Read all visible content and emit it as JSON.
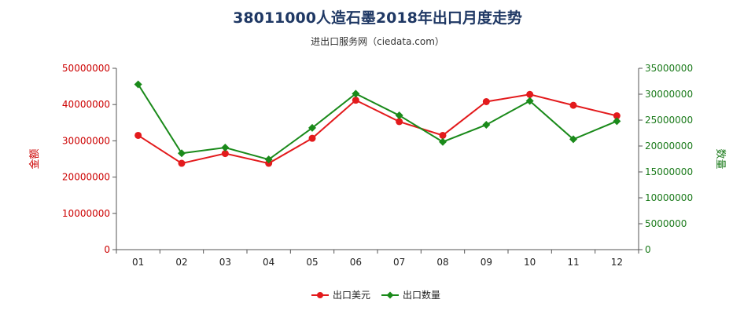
{
  "title": "38011000人造石墨2018年出口月度走势",
  "subtitle": "进出口服务网（ciedata.com）",
  "chart_data": {
    "type": "line",
    "categories": [
      "01",
      "02",
      "03",
      "04",
      "05",
      "06",
      "07",
      "08",
      "09",
      "10",
      "11",
      "12"
    ],
    "series": [
      {
        "name": "出口美元",
        "axis": "left",
        "color": "#e31a1c",
        "values": [
          31500000,
          23800000,
          26500000,
          23800000,
          30700000,
          41200000,
          35300000,
          31500000,
          40800000,
          42800000,
          39800000,
          36900000
        ]
      },
      {
        "name": "出口数量",
        "axis": "right",
        "color": "#1a8a1a",
        "values": [
          31900000,
          18600000,
          19700000,
          17400000,
          23500000,
          30100000,
          25900000,
          20800000,
          24100000,
          28700000,
          21300000,
          24800000
        ]
      }
    ],
    "y_left": {
      "label": "金额",
      "range": [
        0,
        50000000
      ],
      "ticks": [
        "0",
        "10000000",
        "20000000",
        "30000000",
        "40000000",
        "50000000"
      ]
    },
    "y_right": {
      "label": "数量",
      "range": [
        0,
        35000000
      ],
      "ticks": [
        "0",
        "5000000",
        "10000000",
        "15000000",
        "20000000",
        "25000000",
        "30000000",
        "35000000"
      ]
    },
    "grid": false,
    "legend": "bottom-center"
  }
}
